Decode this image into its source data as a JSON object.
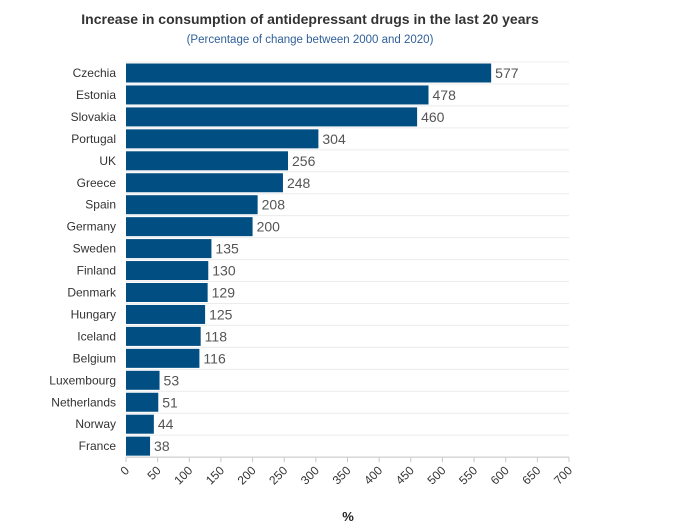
{
  "chart_data": {
    "type": "bar",
    "orientation": "horizontal",
    "title": "Increase in consumption of antidepressant drugs in the last 20 years",
    "subtitle": "(Percentage of change between 2000 and 2020)",
    "xlabel": "%",
    "ylabel": "",
    "xlim": [
      0,
      700
    ],
    "xticks": [
      "0",
      "50",
      "100",
      "150",
      "200",
      "250",
      "300",
      "350",
      "400",
      "450",
      "500",
      "550",
      "600",
      "650",
      "700"
    ],
    "grid": true,
    "legend": "none",
    "bar_color": "#004e82",
    "categories": [
      "Czechia",
      "Estonia",
      "Slovakia",
      "Portugal",
      "UK",
      "Greece",
      "Spain",
      "Germany",
      "Sweden",
      "Finland",
      "Denmark",
      "Hungary",
      "Iceland",
      "Belgium",
      "Luxembourg",
      "Netherlands",
      "Norway",
      "France"
    ],
    "values": [
      577,
      478,
      460,
      304,
      256,
      248,
      208,
      200,
      135,
      130,
      129,
      125,
      118,
      116,
      53,
      51,
      44,
      38
    ]
  }
}
